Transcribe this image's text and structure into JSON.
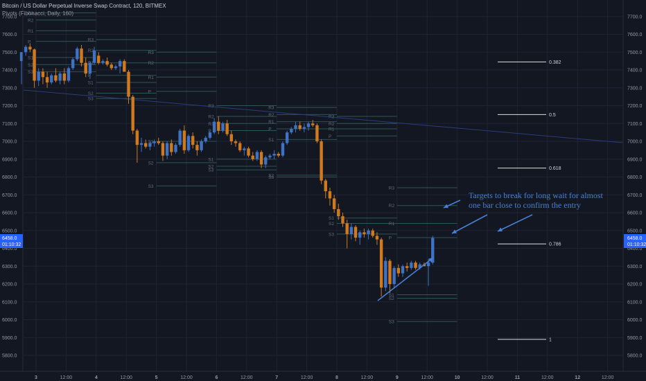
{
  "header": {
    "title": "Bitcoin / US Dollar Perpetual Inverse Swap Contract, 120, BITMEX",
    "indicator": "Pivots (Fibonacci, Daily, 160)"
  },
  "colors": {
    "background": "#131722",
    "grid": "#1f2433",
    "up_candle": "#3f72c4",
    "down_candle": "#d07a1f",
    "pivot_line": "#2f5556",
    "trendline": "#2b3d7a",
    "fib_line": "#e0e0e0",
    "annotation": "#4a7fd6",
    "price_tag": "#2962ff"
  },
  "price_axis": {
    "labels": [
      "7700.0",
      "7600.0",
      "7500.0",
      "7400.0",
      "7300.0",
      "7200.0",
      "7100.0",
      "7000.0",
      "6900.0",
      "6800.0",
      "6700.0",
      "6600.0",
      "6500.0",
      "6400.0",
      "6300.0",
      "6200.0",
      "6100.0",
      "6000.0",
      "5900.0",
      "5800.0"
    ],
    "current_price": "6458.0",
    "countdown": "01:10:32"
  },
  "time_axis": {
    "labels": [
      "3",
      "12:00",
      "4",
      "12:00",
      "5",
      "12:00",
      "6",
      "12:00",
      "7",
      "12:00",
      "8",
      "12:00",
      "9",
      "12:00",
      "10",
      "12:00",
      "11",
      "12:00",
      "12",
      "12:00"
    ]
  },
  "annotation": {
    "lines": [
      "Targets to break for long wait for almost",
      "one bar close to confirm the entry"
    ]
  },
  "chart_data": {
    "type": "candlestick",
    "title": "Bitcoin / US Dollar Perpetual Inverse Swap Contract, 120, BITMEX",
    "interval": "120",
    "ylim": [
      5750,
      7780
    ],
    "grid": true,
    "candles": [
      {
        "o": 7450,
        "h": 7500,
        "l": 7320,
        "c": 7500
      },
      {
        "o": 7500,
        "h": 7540,
        "l": 7480,
        "c": 7530
      },
      {
        "o": 7530,
        "h": 7550,
        "l": 7500,
        "c": 7515
      },
      {
        "o": 7515,
        "h": 7520,
        "l": 7300,
        "c": 7340
      },
      {
        "o": 7340,
        "h": 7410,
        "l": 7310,
        "c": 7390
      },
      {
        "o": 7390,
        "h": 7410,
        "l": 7320,
        "c": 7360
      },
      {
        "o": 7360,
        "h": 7390,
        "l": 7300,
        "c": 7330
      },
      {
        "o": 7330,
        "h": 7380,
        "l": 7320,
        "c": 7370
      },
      {
        "o": 7370,
        "h": 7410,
        "l": 7330,
        "c": 7340
      },
      {
        "o": 7340,
        "h": 7390,
        "l": 7320,
        "c": 7380
      },
      {
        "o": 7380,
        "h": 7410,
        "l": 7320,
        "c": 7340
      },
      {
        "o": 7340,
        "h": 7420,
        "l": 7330,
        "c": 7410
      },
      {
        "o": 7410,
        "h": 7470,
        "l": 7400,
        "c": 7460
      },
      {
        "o": 7460,
        "h": 7530,
        "l": 7450,
        "c": 7520
      },
      {
        "o": 7520,
        "h": 7540,
        "l": 7420,
        "c": 7440
      },
      {
        "o": 7440,
        "h": 7470,
        "l": 7360,
        "c": 7380
      },
      {
        "o": 7380,
        "h": 7450,
        "l": 7350,
        "c": 7440
      },
      {
        "o": 7440,
        "h": 7530,
        "l": 7430,
        "c": 7510
      },
      {
        "o": 7480,
        "h": 7500,
        "l": 7430,
        "c": 7440
      },
      {
        "o": 7440,
        "h": 7460,
        "l": 7430,
        "c": 7450
      },
      {
        "o": 7450,
        "h": 7470,
        "l": 7420,
        "c": 7430
      },
      {
        "o": 7430,
        "h": 7440,
        "l": 7400,
        "c": 7410
      },
      {
        "o": 7410,
        "h": 7430,
        "l": 7400,
        "c": 7420
      },
      {
        "o": 7420,
        "h": 7460,
        "l": 7380,
        "c": 7450
      },
      {
        "o": 7450,
        "h": 7460,
        "l": 7400,
        "c": 7390
      },
      {
        "o": 7390,
        "h": 7400,
        "l": 7210,
        "c": 7250
      },
      {
        "o": 7250,
        "h": 7260,
        "l": 7040,
        "c": 7060
      },
      {
        "o": 7060,
        "h": 7070,
        "l": 6880,
        "c": 6980
      },
      {
        "o": 6980,
        "h": 7020,
        "l": 6940,
        "c": 6990
      },
      {
        "o": 6990,
        "h": 7010,
        "l": 6960,
        "c": 6970
      },
      {
        "o": 6970,
        "h": 7000,
        "l": 6950,
        "c": 6990
      },
      {
        "o": 6990,
        "h": 7010,
        "l": 6970,
        "c": 7000
      },
      {
        "o": 7000,
        "h": 7020,
        "l": 6980,
        "c": 6990
      },
      {
        "o": 6990,
        "h": 7000,
        "l": 6890,
        "c": 6920
      },
      {
        "o": 6920,
        "h": 7000,
        "l": 6900,
        "c": 6990
      },
      {
        "o": 6990,
        "h": 7010,
        "l": 6920,
        "c": 6940
      },
      {
        "o": 6940,
        "h": 6990,
        "l": 6930,
        "c": 6980
      },
      {
        "o": 6980,
        "h": 7070,
        "l": 6970,
        "c": 7060
      },
      {
        "o": 7060,
        "h": 7090,
        "l": 6930,
        "c": 6950
      },
      {
        "o": 6950,
        "h": 7040,
        "l": 6940,
        "c": 7030
      },
      {
        "o": 7030,
        "h": 7050,
        "l": 6960,
        "c": 6980
      },
      {
        "o": 6980,
        "h": 7000,
        "l": 6920,
        "c": 6950
      },
      {
        "o": 6950,
        "h": 7010,
        "l": 6940,
        "c": 7000
      },
      {
        "o": 7000,
        "h": 7030,
        "l": 6990,
        "c": 7020
      },
      {
        "o": 7020,
        "h": 7060,
        "l": 7010,
        "c": 7050
      },
      {
        "o": 7050,
        "h": 7130,
        "l": 7040,
        "c": 7110
      },
      {
        "o": 7110,
        "h": 7140,
        "l": 7040,
        "c": 7060
      },
      {
        "o": 7060,
        "h": 7110,
        "l": 7050,
        "c": 7100
      },
      {
        "o": 7100,
        "h": 7120,
        "l": 7030,
        "c": 7040
      },
      {
        "o": 7040,
        "h": 7060,
        "l": 6980,
        "c": 7000
      },
      {
        "o": 7000,
        "h": 7010,
        "l": 6970,
        "c": 6990
      },
      {
        "o": 6990,
        "h": 7000,
        "l": 6940,
        "c": 6950
      },
      {
        "o": 6950,
        "h": 6970,
        "l": 6920,
        "c": 6960
      },
      {
        "o": 6960,
        "h": 6970,
        "l": 6910,
        "c": 6920
      },
      {
        "o": 6920,
        "h": 6940,
        "l": 6890,
        "c": 6900
      },
      {
        "o": 6900,
        "h": 6950,
        "l": 6890,
        "c": 6940
      },
      {
        "o": 6940,
        "h": 6950,
        "l": 6850,
        "c": 6870
      },
      {
        "o": 6870,
        "h": 6920,
        "l": 6850,
        "c": 6910
      },
      {
        "o": 6910,
        "h": 6930,
        "l": 6900,
        "c": 6920
      },
      {
        "o": 6920,
        "h": 6950,
        "l": 6900,
        "c": 6930
      },
      {
        "o": 6930,
        "h": 6940,
        "l": 6910,
        "c": 6920
      },
      {
        "o": 6920,
        "h": 7000,
        "l": 6910,
        "c": 6990
      },
      {
        "o": 6990,
        "h": 7060,
        "l": 6980,
        "c": 7050
      },
      {
        "o": 7050,
        "h": 7080,
        "l": 7040,
        "c": 7070
      },
      {
        "o": 7070,
        "h": 7110,
        "l": 7050,
        "c": 7090
      },
      {
        "o": 7090,
        "h": 7110,
        "l": 7060,
        "c": 7070
      },
      {
        "o": 7070,
        "h": 7100,
        "l": 7050,
        "c": 7080
      },
      {
        "o": 7080,
        "h": 7110,
        "l": 7060,
        "c": 7100
      },
      {
        "o": 7100,
        "h": 7120,
        "l": 7080,
        "c": 7090
      },
      {
        "o": 7090,
        "h": 7100,
        "l": 6990,
        "c": 7000
      },
      {
        "o": 7000,
        "h": 7010,
        "l": 6760,
        "c": 6780
      },
      {
        "o": 6780,
        "h": 6790,
        "l": 6680,
        "c": 6720
      },
      {
        "o": 6720,
        "h": 6740,
        "l": 6640,
        "c": 6680
      },
      {
        "o": 6680,
        "h": 6700,
        "l": 6600,
        "c": 6620
      },
      {
        "o": 6620,
        "h": 6650,
        "l": 6560,
        "c": 6580
      },
      {
        "o": 6580,
        "h": 6600,
        "l": 6520,
        "c": 6540
      },
      {
        "o": 6540,
        "h": 6560,
        "l": 6400,
        "c": 6480
      },
      {
        "o": 6480,
        "h": 6540,
        "l": 6450,
        "c": 6520
      },
      {
        "o": 6520,
        "h": 6530,
        "l": 6440,
        "c": 6460
      },
      {
        "o": 6460,
        "h": 6500,
        "l": 6420,
        "c": 6490
      },
      {
        "o": 6490,
        "h": 6510,
        "l": 6460,
        "c": 6480
      },
      {
        "o": 6480,
        "h": 6510,
        "l": 6450,
        "c": 6500
      },
      {
        "o": 6500,
        "h": 6510,
        "l": 6460,
        "c": 6470
      },
      {
        "o": 6470,
        "h": 6490,
        "l": 6420,
        "c": 6450
      },
      {
        "o": 6450,
        "h": 6460,
        "l": 6130,
        "c": 6180
      },
      {
        "o": 6180,
        "h": 6350,
        "l": 6160,
        "c": 6330
      },
      {
        "o": 6330,
        "h": 6340,
        "l": 6150,
        "c": 6200
      },
      {
        "o": 6200,
        "h": 6300,
        "l": 6180,
        "c": 6290
      },
      {
        "o": 6290,
        "h": 6310,
        "l": 6240,
        "c": 6260
      },
      {
        "o": 6260,
        "h": 6310,
        "l": 6240,
        "c": 6300
      },
      {
        "o": 6300,
        "h": 6320,
        "l": 6270,
        "c": 6290
      },
      {
        "o": 6290,
        "h": 6330,
        "l": 6280,
        "c": 6320
      },
      {
        "o": 6320,
        "h": 6330,
        "l": 6280,
        "c": 6290
      },
      {
        "o": 6290,
        "h": 6320,
        "l": 6280,
        "c": 6310
      },
      {
        "o": 6310,
        "h": 6320,
        "l": 6300,
        "c": 6300
      },
      {
        "o": 6300,
        "h": 6340,
        "l": 6190,
        "c": 6320
      },
      {
        "o": 6320,
        "h": 6470,
        "l": 6310,
        "c": 6458
      }
    ],
    "pivot_labels": [
      "R3",
      "R2",
      "R1",
      "P",
      "S1",
      "S2",
      "S3"
    ],
    "fibonacci_levels": [
      {
        "label": "0.382",
        "price": 7445
      },
      {
        "label": "0.5",
        "price": 7150
      },
      {
        "label": "0.618",
        "price": 6850
      },
      {
        "label": "0.786",
        "price": 6425
      },
      {
        "label": "1",
        "price": 5890
      }
    ]
  }
}
